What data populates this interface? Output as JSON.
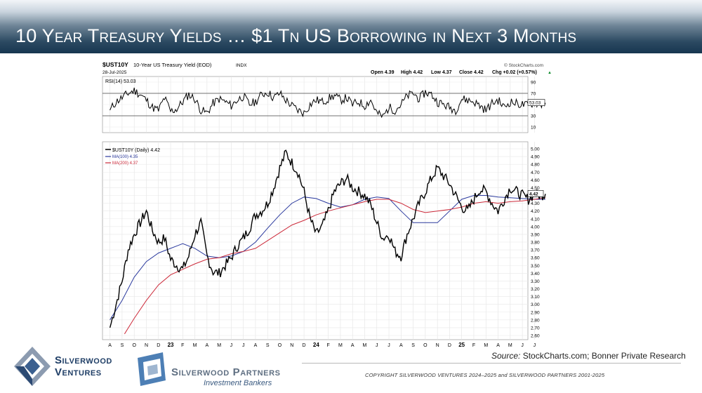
{
  "slide": {
    "title": "10 Year Treasury Yields … $1 Tn US Borrowing in Next 3 Months",
    "source_label": "Source:",
    "source_text": "StockCharts.com; Bonner Private Research",
    "copyright": "COPYRIGHT SILVERWOOD VENTURES 2024–2025 and SILVERWOOD PARTNERS 2001-2025"
  },
  "logos": {
    "ventures_line1": "Silverwood",
    "ventures_line2": "Ventures",
    "partners_name": "Silverwood Partners",
    "partners_sub": "Investment Bankers"
  },
  "colors": {
    "banner_dark": "#173650",
    "price": "#000000",
    "ma100": "#2b3a9e",
    "ma200": "#cc2a3a",
    "rsi": "#000000"
  },
  "chart_data": [
    {
      "type": "line",
      "ticker": "$UST10Y",
      "title": "10-Year US Treasury Yield (EOD)",
      "exchange": "INDX",
      "date": "28-Jul-2025",
      "watermark": "© StockCharts.com",
      "quote": {
        "open": "Open 4.39",
        "high": "High 4.42",
        "low": "Low 4.37",
        "close": "Close 4.42",
        "change": "Chg +0.02 (+0.57%)",
        "direction": "▲"
      },
      "x_tick_labels": [
        "A",
        "S",
        "O",
        "N",
        "D",
        "23",
        "F",
        "M",
        "A",
        "M",
        "J",
        "J",
        "A",
        "S",
        "O",
        "N",
        "D",
        "24",
        "F",
        "M",
        "A",
        "M",
        "J",
        "J",
        "A",
        "S",
        "O",
        "N",
        "D",
        "25",
        "F",
        "M",
        "A",
        "M",
        "J",
        "J"
      ],
      "ylim": [
        2.6,
        5.0
      ],
      "y_ticks": [
        "5.00",
        "4.90",
        "4.80",
        "4.70",
        "4.60",
        "4.50",
        "4.40",
        "4.30",
        "4.20",
        "4.10",
        "4.00",
        "3.90",
        "3.80",
        "3.70",
        "3.60",
        "3.50",
        "3.40",
        "3.30",
        "3.20",
        "3.10",
        "3.00",
        "2.90",
        "2.80",
        "2.70",
        "2.60"
      ],
      "last_value_label": "4.42",
      "series": [
        {
          "name": "$UST10Y (Daily) 4.42",
          "x": [
            0,
            0.5,
            1,
            1.5,
            2,
            2.5,
            3,
            3.5,
            4,
            4.5,
            5,
            5.5,
            6,
            6.5,
            7,
            7.5,
            8,
            8.5,
            9,
            9.5,
            10,
            10.5,
            11,
            11.5,
            12,
            12.5,
            13,
            13.5,
            14,
            14.5,
            15,
            15.5,
            16,
            16.5,
            17,
            17.5,
            18,
            18.5,
            19,
            19.5,
            20,
            20.5,
            21,
            21.5,
            22,
            22.5,
            23,
            23.5,
            24,
            24.5,
            25,
            25.5,
            26,
            26.5,
            27,
            27.5,
            28,
            28.5,
            29,
            29.5,
            30,
            30.5,
            31,
            31.5,
            32,
            32.5,
            33,
            33.5,
            34,
            34.5,
            35,
            35.5,
            35.9
          ],
          "values": [
            2.7,
            3.0,
            3.3,
            3.7,
            3.9,
            4.05,
            4.2,
            3.95,
            3.8,
            3.85,
            3.58,
            3.5,
            3.45,
            3.62,
            3.9,
            4.05,
            3.62,
            3.42,
            3.4,
            3.5,
            3.6,
            3.75,
            3.85,
            3.98,
            4.15,
            4.2,
            4.3,
            4.5,
            4.75,
            4.95,
            4.82,
            4.7,
            4.45,
            4.1,
            3.9,
            4.0,
            4.2,
            4.45,
            4.55,
            4.62,
            4.5,
            4.45,
            4.4,
            4.28,
            4.05,
            3.85,
            3.9,
            3.68,
            3.62,
            3.9,
            4.1,
            4.3,
            4.45,
            4.62,
            4.75,
            4.65,
            4.55,
            4.4,
            4.25,
            4.2,
            4.35,
            4.48,
            4.45,
            4.3,
            4.2,
            4.35,
            4.5,
            4.45,
            4.4,
            4.35,
            4.42,
            4.4,
            4.42
          ]
        },
        {
          "name": "MA(100) 4.35",
          "x": [
            0,
            1,
            2,
            3,
            4,
            5,
            6,
            7,
            8,
            9,
            10,
            11,
            12,
            13,
            14,
            15,
            16,
            17,
            18,
            19,
            20,
            21,
            22,
            23,
            24,
            25,
            26,
            27,
            28,
            29,
            30,
            31,
            32,
            33,
            34,
            35,
            35.9
          ],
          "values": [
            2.8,
            3.05,
            3.35,
            3.55,
            3.66,
            3.72,
            3.78,
            3.72,
            3.62,
            3.6,
            3.62,
            3.68,
            3.8,
            3.98,
            4.15,
            4.3,
            4.38,
            4.36,
            4.3,
            4.25,
            4.28,
            4.35,
            4.38,
            4.36,
            4.2,
            4.05,
            4.05,
            4.05,
            4.2,
            4.35,
            4.4,
            4.4,
            4.38,
            4.37,
            4.36,
            4.35,
            4.35
          ]
        },
        {
          "name": "MA(200) 4.37",
          "x": [
            1.2,
            2,
            3,
            4,
            5,
            6,
            7,
            8,
            9,
            10,
            11,
            12,
            13,
            14,
            15,
            16,
            17,
            18,
            19,
            20,
            21,
            22,
            23,
            24,
            25,
            26,
            27,
            28,
            29,
            30,
            31,
            32,
            33,
            34,
            35,
            35.9
          ],
          "values": [
            2.62,
            2.82,
            3.05,
            3.25,
            3.38,
            3.45,
            3.52,
            3.58,
            3.6,
            3.65,
            3.68,
            3.72,
            3.82,
            3.92,
            4.02,
            4.08,
            4.15,
            4.2,
            4.24,
            4.28,
            4.32,
            4.35,
            4.35,
            4.3,
            4.22,
            4.18,
            4.2,
            4.22,
            4.25,
            4.3,
            4.32,
            4.3,
            4.32,
            4.33,
            4.35,
            4.37
          ]
        }
      ]
    },
    {
      "type": "line",
      "name": "RSI(14) 53.03",
      "ylim": [
        0,
        100
      ],
      "y_ticks": [
        "90",
        "70",
        "50",
        "30",
        "10"
      ],
      "reference_levels": [
        70,
        30
      ],
      "last_value_label": "53.03",
      "x": [
        0,
        0.5,
        1,
        1.5,
        2,
        2.5,
        3,
        3.5,
        4,
        4.5,
        5,
        5.5,
        6,
        6.5,
        7,
        7.5,
        8,
        8.5,
        9,
        9.5,
        10,
        10.5,
        11,
        11.5,
        12,
        12.5,
        13,
        13.5,
        14,
        14.5,
        15,
        15.5,
        16,
        16.5,
        17,
        17.5,
        18,
        18.5,
        19,
        19.5,
        20,
        20.5,
        21,
        21.5,
        22,
        22.5,
        23,
        23.5,
        24,
        24.5,
        25,
        25.5,
        26,
        26.5,
        27,
        27.5,
        28,
        28.5,
        29,
        29.5,
        30,
        30.5,
        31,
        31.5,
        32,
        32.5,
        33,
        33.5,
        34,
        34.5,
        35,
        35.5,
        35.9
      ],
      "values": [
        40,
        55,
        62,
        70,
        75,
        68,
        58,
        45,
        40,
        62,
        38,
        42,
        55,
        68,
        60,
        40,
        35,
        52,
        60,
        55,
        48,
        58,
        65,
        50,
        55,
        68,
        72,
        62,
        70,
        58,
        48,
        40,
        35,
        50,
        58,
        55,
        60,
        66,
        58,
        62,
        50,
        55,
        48,
        58,
        35,
        28,
        45,
        40,
        50,
        65,
        70,
        60,
        72,
        68,
        55,
        50,
        45,
        40,
        60,
        58,
        55,
        48,
        40,
        52,
        58,
        45,
        55,
        52,
        50,
        48,
        55,
        50,
        53
      ]
    }
  ]
}
